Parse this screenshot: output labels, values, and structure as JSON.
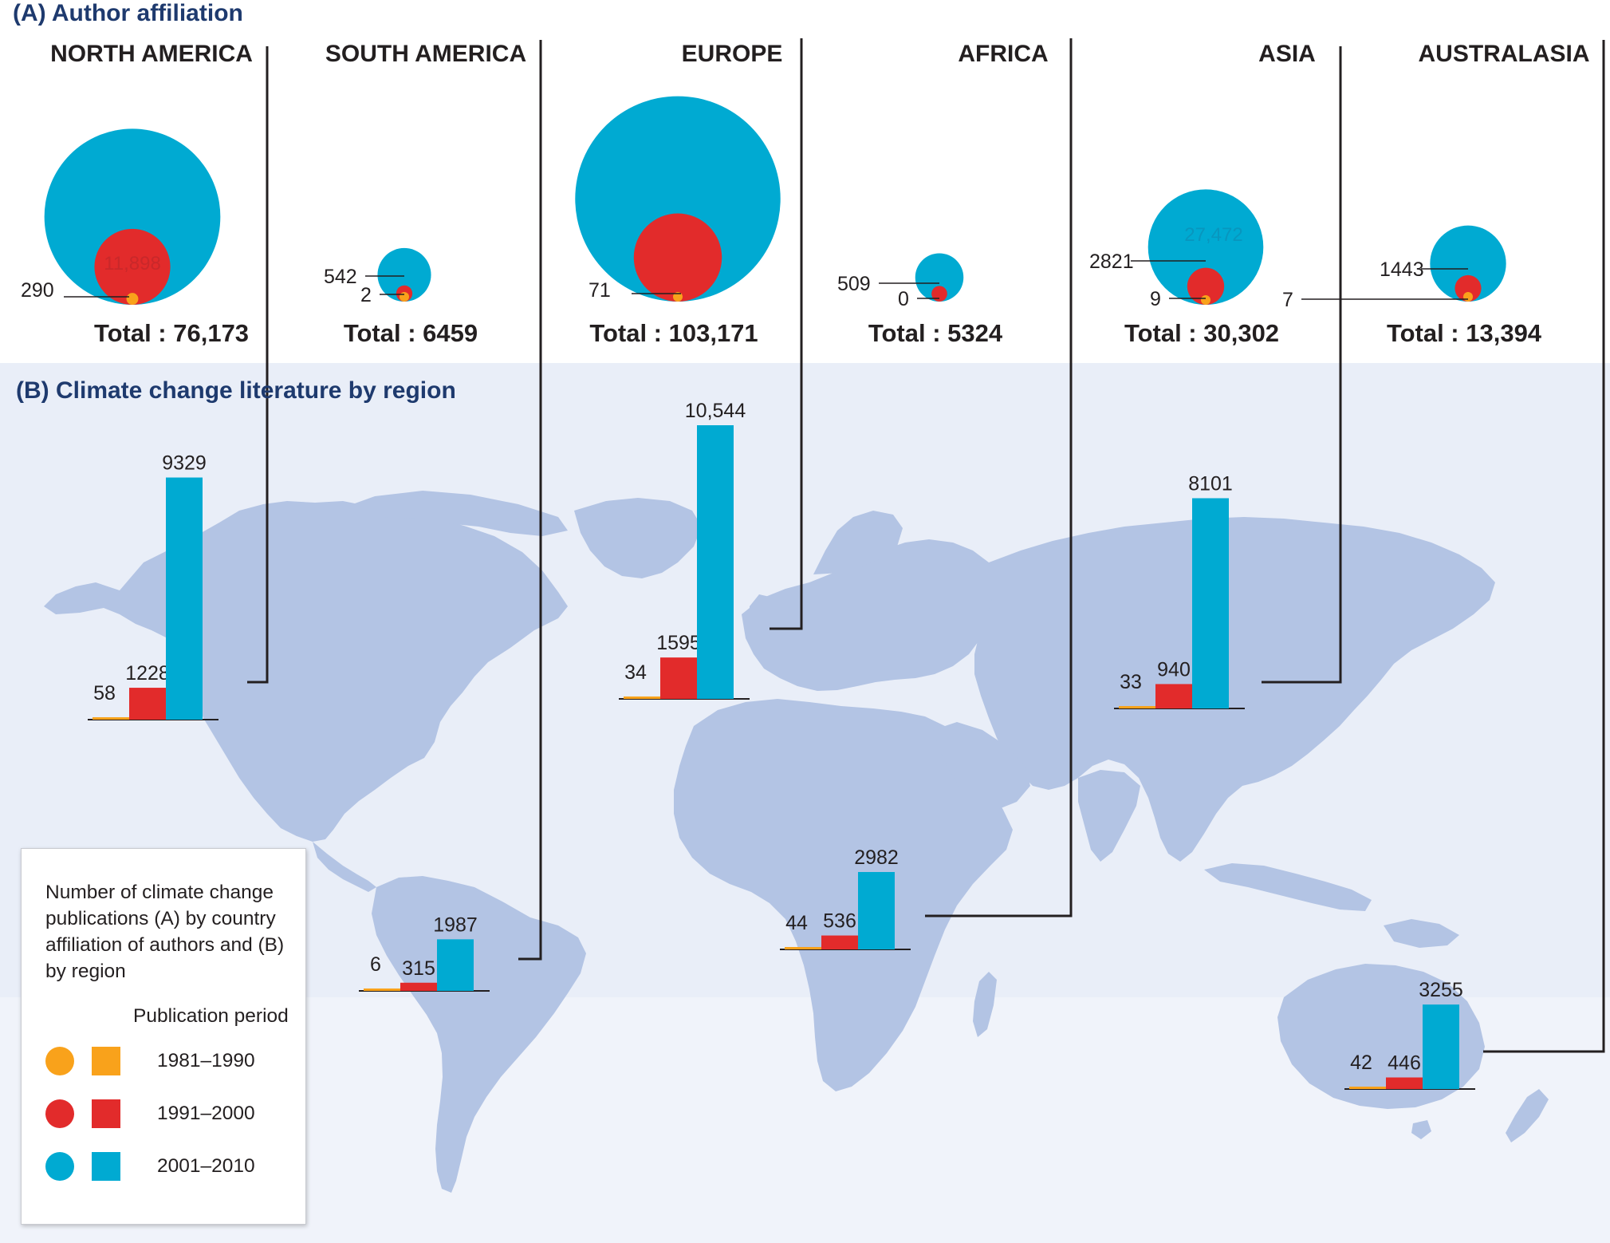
{
  "panel_a_title": "(A)  Author affiliation",
  "panel_b_title": "(B) Climate change literature by region",
  "colors": {
    "p1981": "#f9a21b",
    "p1991": "#e22b2b",
    "p2001": "#00aad2",
    "map_land": "#b3c4e4",
    "band": "#e6ecf7",
    "title_blue": "#1e3a6e",
    "text": "#231f20"
  },
  "legend": {
    "description": "Number of climate change publications (A) by country affiliation of authors and (B) by region",
    "period_title": "Publication period",
    "periods": [
      "1981–1990",
      "1991–2000",
      "2001–2010"
    ]
  },
  "chart_data": [
    {
      "type": "bubble",
      "title": "(A)  Author affiliation",
      "series_names": [
        "1981–1990",
        "1991–2000",
        "2001–2010"
      ],
      "regions": [
        {
          "name": "NORTH AMERICA",
          "values": [
            290,
            11898,
            63985
          ],
          "labels": [
            "290",
            "11,898",
            ""
          ],
          "total": "Total : 76,173"
        },
        {
          "name": "SOUTH AMERICA",
          "values": [
            2,
            542,
            5915
          ],
          "labels": [
            "2",
            "542",
            ""
          ],
          "total": "Total : 6459"
        },
        {
          "name": "EUROPE",
          "values": [
            71,
            16034,
            87066
          ],
          "labels": [
            "71",
            "",
            ""
          ],
          "total": "Total : 103,171"
        },
        {
          "name": "AFRICA",
          "values": [
            0,
            509,
            4815
          ],
          "labels": [
            "0",
            "509",
            ""
          ],
          "total": "Total : 5324"
        },
        {
          "name": "ASIA",
          "values": [
            9,
            2821,
            27472
          ],
          "labels": [
            "9",
            "2821",
            "27,472"
          ],
          "total": "Total : 30,302"
        },
        {
          "name": "AUSTRALASIA",
          "values": [
            7,
            1443,
            11944
          ],
          "labels": [
            "7",
            "1443",
            ""
          ],
          "total": "Total : 13,394"
        }
      ]
    },
    {
      "type": "bar",
      "title": "(B) Climate change literature by region",
      "series_names": [
        "1981–1990",
        "1991–2000",
        "2001–2010"
      ],
      "regions": [
        {
          "name": "North America",
          "values": [
            58,
            1228,
            9329
          ],
          "labels": [
            "58",
            "1228",
            "9329"
          ]
        },
        {
          "name": "South America",
          "values": [
            6,
            315,
            1987
          ],
          "labels": [
            "6",
            "315",
            "1987"
          ]
        },
        {
          "name": "Europe",
          "values": [
            34,
            1595,
            10544
          ],
          "labels": [
            "34",
            "1595",
            "10,544"
          ]
        },
        {
          "name": "Africa",
          "values": [
            44,
            536,
            2982
          ],
          "labels": [
            "44",
            "536",
            "2982"
          ]
        },
        {
          "name": "Asia",
          "values": [
            33,
            940,
            8101
          ],
          "labels": [
            "33",
            "940",
            "8101"
          ]
        },
        {
          "name": "Australasia",
          "values": [
            42,
            446,
            3255
          ],
          "labels": [
            "42",
            "446",
            "3255"
          ]
        }
      ]
    }
  ]
}
